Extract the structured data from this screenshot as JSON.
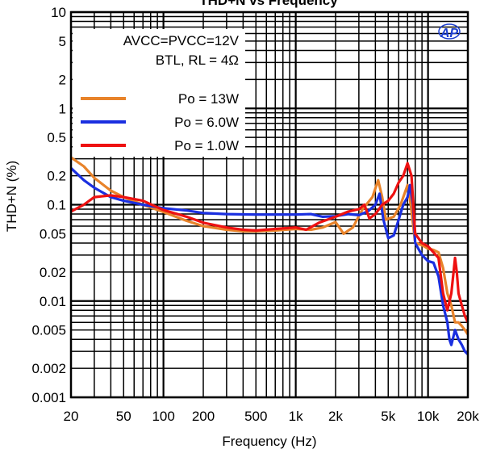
{
  "chart_data": {
    "type": "line",
    "title": "THD+N vs Frequency",
    "xlabel": "Frequency (Hz)",
    "ylabel": "THD+N (%)",
    "xscale": "log",
    "yscale": "log",
    "xlim": [
      20,
      20000
    ],
    "ylim": [
      0.001,
      10
    ],
    "grid": true,
    "x_ticks": [
      {
        "v": 20,
        "label": "20"
      },
      {
        "v": 50,
        "label": "50"
      },
      {
        "v": 100,
        "label": "100"
      },
      {
        "v": 200,
        "label": "200"
      },
      {
        "v": 500,
        "label": "500"
      },
      {
        "v": 1000,
        "label": "1k"
      },
      {
        "v": 2000,
        "label": "2k"
      },
      {
        "v": 5000,
        "label": "5k"
      },
      {
        "v": 10000,
        "label": "10k"
      },
      {
        "v": 20000,
        "label": "20k"
      }
    ],
    "y_ticks": [
      {
        "v": 0.001,
        "label": "0.001"
      },
      {
        "v": 0.002,
        "label": "0.002"
      },
      {
        "v": 0.005,
        "label": "0.005"
      },
      {
        "v": 0.01,
        "label": "0.01"
      },
      {
        "v": 0.02,
        "label": "0.02"
      },
      {
        "v": 0.05,
        "label": "0.05"
      },
      {
        "v": 0.1,
        "label": "0.1"
      },
      {
        "v": 0.2,
        "label": "0.2"
      },
      {
        "v": 0.5,
        "label": "0.5"
      },
      {
        "v": 1,
        "label": "1"
      },
      {
        "v": 2,
        "label": "2"
      },
      {
        "v": 5,
        "label": "5"
      },
      {
        "v": 10,
        "label": "10"
      }
    ],
    "annotations": [
      "AVCC=PVCC=12V",
      "BTL, RL = 4Ω"
    ],
    "logo": "AP",
    "legend_placement": "top-left",
    "series": [
      {
        "name": "Po = 13W",
        "color": "#e8832a",
        "points": [
          [
            20,
            0.31
          ],
          [
            25,
            0.25
          ],
          [
            30,
            0.19
          ],
          [
            40,
            0.14
          ],
          [
            50,
            0.12
          ],
          [
            70,
            0.1
          ],
          [
            100,
            0.084
          ],
          [
            150,
            0.068
          ],
          [
            200,
            0.06
          ],
          [
            300,
            0.055
          ],
          [
            400,
            0.053
          ],
          [
            500,
            0.053
          ],
          [
            700,
            0.054
          ],
          [
            1000,
            0.056
          ],
          [
            1300,
            0.055
          ],
          [
            1600,
            0.058
          ],
          [
            2000,
            0.066
          ],
          [
            2300,
            0.05
          ],
          [
            2700,
            0.058
          ],
          [
            3200,
            0.09
          ],
          [
            3800,
            0.12
          ],
          [
            4200,
            0.18
          ],
          [
            4500,
            0.12
          ],
          [
            4800,
            0.07
          ],
          [
            5500,
            0.075
          ],
          [
            6200,
            0.1
          ],
          [
            7000,
            0.16
          ],
          [
            7400,
            0.1
          ],
          [
            8000,
            0.04
          ],
          [
            9000,
            0.038
          ],
          [
            10000,
            0.035
          ],
          [
            11000,
            0.034
          ],
          [
            12000,
            0.032
          ],
          [
            13000,
            0.022
          ],
          [
            14000,
            0.012
          ],
          [
            15000,
            0.009
          ],
          [
            16000,
            0.006
          ],
          [
            17000,
            0.006
          ],
          [
            18000,
            0.0055
          ],
          [
            19000,
            0.005
          ],
          [
            20000,
            0.0045
          ]
        ]
      },
      {
        "name": "Po = 6.0W",
        "color": "#1a2fe0",
        "points": [
          [
            20,
            0.24
          ],
          [
            25,
            0.18
          ],
          [
            30,
            0.15
          ],
          [
            40,
            0.12
          ],
          [
            50,
            0.11
          ],
          [
            70,
            0.1
          ],
          [
            100,
            0.092
          ],
          [
            150,
            0.087
          ],
          [
            200,
            0.082
          ],
          [
            300,
            0.08
          ],
          [
            500,
            0.079
          ],
          [
            700,
            0.079
          ],
          [
            1000,
            0.079
          ],
          [
            1300,
            0.08
          ],
          [
            1600,
            0.075
          ],
          [
            2000,
            0.076
          ],
          [
            2500,
            0.08
          ],
          [
            3000,
            0.078
          ],
          [
            3500,
            0.085
          ],
          [
            4000,
            0.1
          ],
          [
            4300,
            0.13
          ],
          [
            4600,
            0.07
          ],
          [
            5000,
            0.045
          ],
          [
            5500,
            0.048
          ],
          [
            6000,
            0.07
          ],
          [
            6500,
            0.1
          ],
          [
            7000,
            0.12
          ],
          [
            7300,
            0.16
          ],
          [
            7700,
            0.1
          ],
          [
            8000,
            0.04
          ],
          [
            9000,
            0.03
          ],
          [
            10000,
            0.026
          ],
          [
            11000,
            0.025
          ],
          [
            12000,
            0.018
          ],
          [
            13000,
            0.009
          ],
          [
            14000,
            0.006
          ],
          [
            14500,
            0.004
          ],
          [
            15000,
            0.0035
          ],
          [
            16000,
            0.005
          ],
          [
            17000,
            0.004
          ],
          [
            18000,
            0.0035
          ],
          [
            19000,
            0.003
          ],
          [
            20000,
            0.0028
          ]
        ]
      },
      {
        "name": "Po = 1.0W",
        "color": "#ee1111",
        "points": [
          [
            20,
            0.085
          ],
          [
            25,
            0.1
          ],
          [
            30,
            0.12
          ],
          [
            40,
            0.125
          ],
          [
            50,
            0.12
          ],
          [
            70,
            0.11
          ],
          [
            100,
            0.088
          ],
          [
            150,
            0.075
          ],
          [
            200,
            0.065
          ],
          [
            300,
            0.058
          ],
          [
            400,
            0.055
          ],
          [
            500,
            0.054
          ],
          [
            700,
            0.056
          ],
          [
            1000,
            0.058
          ],
          [
            1200,
            0.055
          ],
          [
            1500,
            0.065
          ],
          [
            2000,
            0.075
          ],
          [
            2500,
            0.085
          ],
          [
            3000,
            0.09
          ],
          [
            3300,
            0.1
          ],
          [
            3600,
            0.072
          ],
          [
            4000,
            0.08
          ],
          [
            4500,
            0.1
          ],
          [
            5000,
            0.11
          ],
          [
            5500,
            0.13
          ],
          [
            6000,
            0.17
          ],
          [
            6500,
            0.2
          ],
          [
            7000,
            0.27
          ],
          [
            7500,
            0.2
          ],
          [
            8000,
            0.05
          ],
          [
            9000,
            0.04
          ],
          [
            10000,
            0.037
          ],
          [
            11000,
            0.032
          ],
          [
            12000,
            0.028
          ],
          [
            13000,
            0.012
          ],
          [
            14000,
            0.008
          ],
          [
            15000,
            0.012
          ],
          [
            16000,
            0.028
          ],
          [
            16500,
            0.02
          ],
          [
            17000,
            0.012
          ],
          [
            18000,
            0.009
          ],
          [
            19000,
            0.007
          ],
          [
            20000,
            0.006
          ]
        ]
      }
    ]
  }
}
